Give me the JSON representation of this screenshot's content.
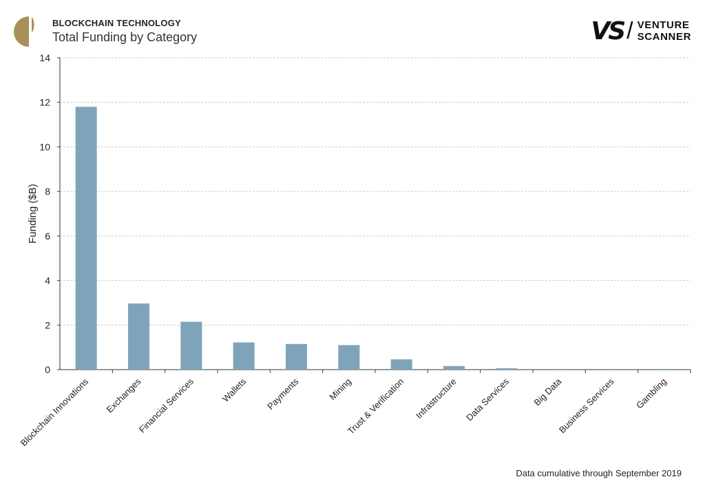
{
  "header": {
    "kicker": "BLOCKCHAIN TECHNOLOGY",
    "title": "Total Funding by Category",
    "logo_icon": "half-circle-logo-icon",
    "brand_mark": "VS",
    "brand_line1": "VENTURE",
    "brand_line2": "SCANNER"
  },
  "footnote": "Data cumulative through September 2019",
  "colors": {
    "bar": "#7fa4b9",
    "grid": "#cccccc",
    "axis": "#333333",
    "logo": "#a8905a"
  },
  "chart_data": {
    "type": "bar",
    "ylabel": "Funding ($B)",
    "xlabel": "",
    "ylim": [
      0,
      14
    ],
    "yticks": [
      0,
      2,
      4,
      6,
      8,
      10,
      12,
      14
    ],
    "grid": true,
    "categories": [
      "Blockchain Innovations",
      "Exchanges",
      "Financial Services",
      "Wallets",
      "Payments",
      "Mining",
      "Trust & Verification",
      "Infrastructure",
      "Data Services",
      "Big Data",
      "Business Services",
      "Gambling"
    ],
    "values": [
      11.8,
      2.97,
      2.15,
      1.22,
      1.15,
      1.1,
      0.46,
      0.16,
      0.06,
      0.03,
      0.03,
      0.03
    ]
  }
}
